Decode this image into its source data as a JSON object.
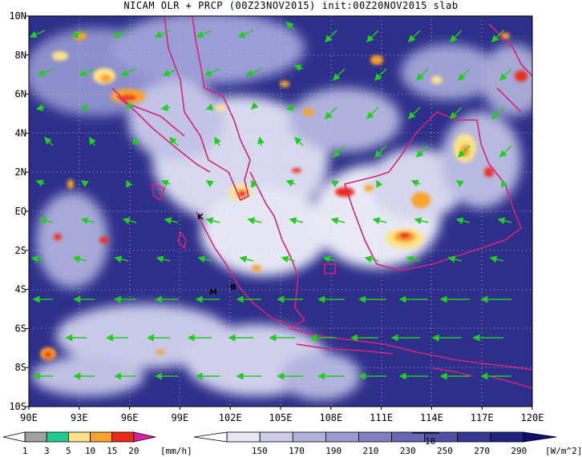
{
  "header": {
    "title": "NICAM OLR + PRCP (00Z23NOV2015) init:00Z20NOV2015 slab"
  },
  "map": {
    "lat_labels": [
      "10N",
      "8N",
      "6N",
      "4N",
      "2N",
      "EQ",
      "2S",
      "4S",
      "6S",
      "8S",
      "10S"
    ],
    "lon_labels": [
      "90E",
      "93E",
      "96E",
      "99E",
      "102E",
      "105E",
      "108E",
      "111E",
      "114E",
      "117E",
      "120E"
    ],
    "markers": [
      {
        "label": "K"
      },
      {
        "label": "M"
      },
      {
        "label": "B"
      }
    ],
    "colors": {
      "olr_background": "#2d2f8a",
      "coast": "#d4237a",
      "wind": "#22cc22"
    }
  },
  "legend_prcp": {
    "ticks": [
      "1",
      "3",
      "5",
      "10",
      "15",
      "20"
    ],
    "unit": "[mm/h]",
    "colors": [
      "#ffffff",
      "#a0a0a0",
      "#1fcc8f",
      "#fbe38a",
      "#fba32a",
      "#ec2a1b",
      "#dc1fa1"
    ]
  },
  "legend_olr": {
    "ticks": [
      "150",
      "170",
      "190",
      "210",
      "230",
      "250",
      "270",
      "290"
    ],
    "unit": "[W/m^2]",
    "vector_ref": "10",
    "colors": [
      "#ffffff",
      "#e6e6f4",
      "#ccccea",
      "#b2b2dd",
      "#9a9ad0",
      "#8080c2",
      "#6767b5",
      "#4f4fa6",
      "#373795",
      "#202080",
      "#0d0d6b"
    ]
  }
}
